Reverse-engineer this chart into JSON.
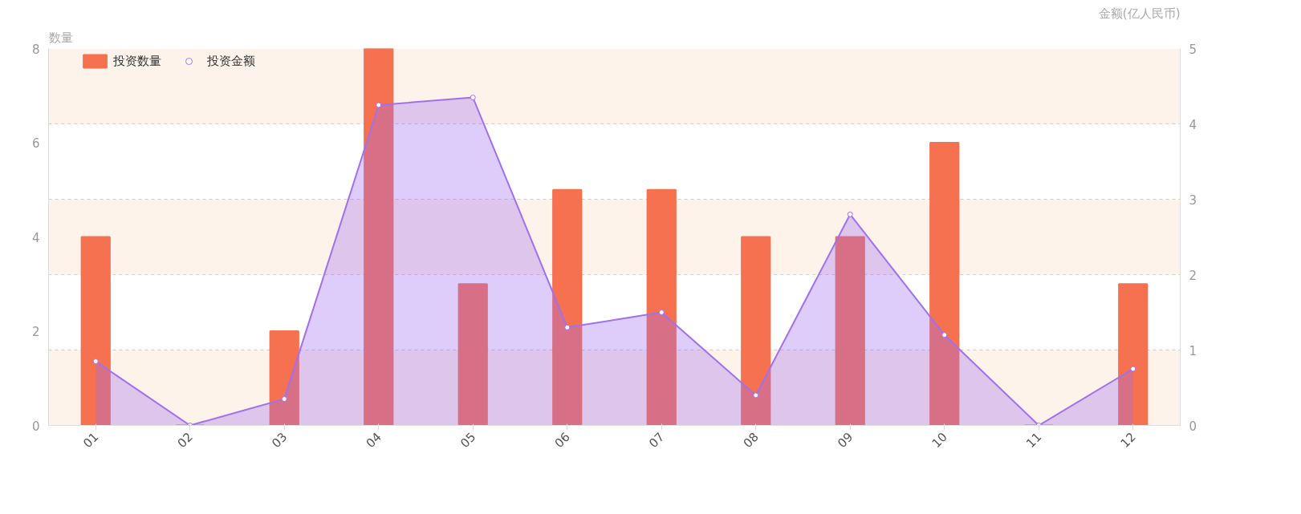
{
  "chart_data": {
    "type": "bar",
    "ylabel": "数量",
    "y2label": "金额(亿人民币)",
    "categories": [
      "01",
      "02",
      "03",
      "04",
      "05",
      "06",
      "07",
      "08",
      "09",
      "10",
      "11",
      "12"
    ],
    "series": [
      {
        "name": "投资数量",
        "color": "#f5714f",
        "values": [
          4,
          0,
          2,
          8,
          3,
          5,
          5,
          4,
          4,
          6,
          0,
          3
        ]
      },
      {
        "name": "投资金额",
        "type": "area",
        "axis": "y2",
        "color": "#a070f0",
        "values": [
          0.85,
          0,
          0.35,
          4.25,
          4.35,
          1.3,
          1.5,
          0.4,
          2.8,
          1.2,
          0,
          0.75
        ]
      }
    ],
    "ylim": [
      0,
      8
    ],
    "yticks": [
      0,
      2,
      4,
      6,
      8
    ],
    "y2lim": [
      0,
      5
    ],
    "y2ticks": [
      0,
      1,
      2,
      3,
      4,
      5
    ],
    "bands": [
      {
        "axis": "y2",
        "from": 0,
        "to": 1,
        "color": "#fdf3ea"
      },
      {
        "axis": "y2",
        "from": 2,
        "to": 3,
        "color": "#fdf3ea"
      },
      {
        "axis": "y2",
        "from": 4,
        "to": 5,
        "color": "#fdf3ea"
      }
    ],
    "grid": true,
    "legend": "top left",
    "marker": "circle"
  }
}
